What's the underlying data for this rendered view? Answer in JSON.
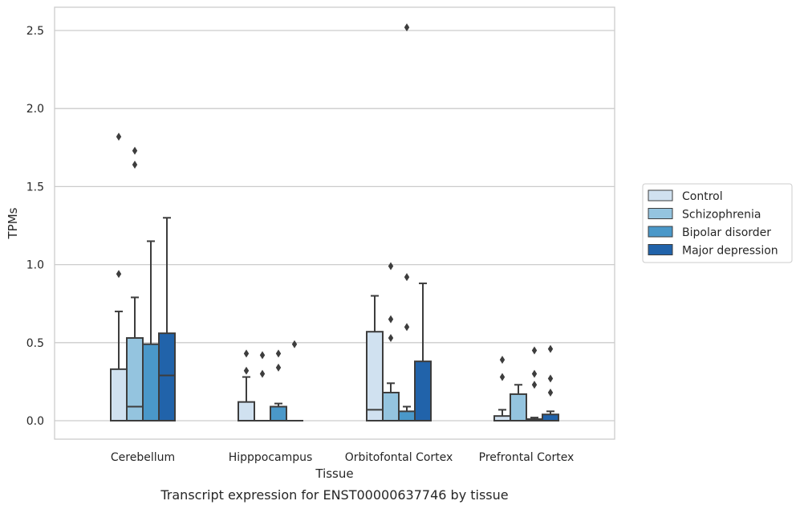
{
  "caption": "Transcript expression for ENST00000637746 by tissue",
  "chart_data": {
    "type": "boxplot",
    "xlabel": "Tissue",
    "ylabel": "TPMs",
    "ylim": [
      -0.12,
      2.65
    ],
    "yticks": [
      0.0,
      0.5,
      1.0,
      1.5,
      2.0,
      2.5
    ],
    "ytick_labels": [
      "0.0",
      "0.5",
      "1.0",
      "1.5",
      "2.0",
      "2.5"
    ],
    "grid": "horizontal",
    "legend_position": "right",
    "categories": [
      "Cerebellum",
      "Hipppocampus",
      "Orbitofontal Cortex",
      "Prefrontal Cortex"
    ],
    "series": [
      {
        "name": "Control",
        "color": "#d0e1f0",
        "boxes": [
          {
            "q1": 0.0,
            "median": 0.0,
            "q3": 0.33,
            "whisker_low": 0.0,
            "whisker_high": 0.7,
            "outliers": [
              0.94,
              1.82
            ]
          },
          {
            "q1": 0.0,
            "median": 0.0,
            "q3": 0.12,
            "whisker_low": 0.0,
            "whisker_high": 0.28,
            "outliers": [
              0.32,
              0.43
            ]
          },
          {
            "q1": 0.0,
            "median": 0.07,
            "q3": 0.57,
            "whisker_low": 0.0,
            "whisker_high": 0.8,
            "outliers": []
          },
          {
            "q1": 0.0,
            "median": 0.0,
            "q3": 0.03,
            "whisker_low": 0.0,
            "whisker_high": 0.07,
            "outliers": [
              0.28,
              0.39
            ]
          }
        ]
      },
      {
        "name": "Schizophrenia",
        "color": "#94c4df",
        "boxes": [
          {
            "q1": 0.0,
            "median": 0.09,
            "q3": 0.53,
            "whisker_low": 0.0,
            "whisker_high": 0.79,
            "outliers": [
              1.64,
              1.73
            ]
          },
          {
            "q1": 0.0,
            "median": 0.0,
            "q3": 0.0,
            "whisker_low": 0.0,
            "whisker_high": 0.0,
            "outliers": [
              0.3,
              0.42
            ]
          },
          {
            "q1": 0.0,
            "median": 0.0,
            "q3": 0.18,
            "whisker_low": 0.0,
            "whisker_high": 0.24,
            "outliers": [
              0.53,
              0.65,
              0.99
            ]
          },
          {
            "q1": 0.0,
            "median": 0.0,
            "q3": 0.17,
            "whisker_low": 0.0,
            "whisker_high": 0.23,
            "outliers": []
          }
        ]
      },
      {
        "name": "Bipolar disorder",
        "color": "#4a98c9",
        "boxes": [
          {
            "q1": 0.0,
            "median": 0.0,
            "q3": 0.49,
            "whisker_low": 0.0,
            "whisker_high": 1.15,
            "outliers": []
          },
          {
            "q1": 0.0,
            "median": 0.0,
            "q3": 0.09,
            "whisker_low": 0.0,
            "whisker_high": 0.11,
            "outliers": [
              0.34,
              0.43
            ]
          },
          {
            "q1": 0.0,
            "median": 0.0,
            "q3": 0.06,
            "whisker_low": 0.0,
            "whisker_high": 0.09,
            "outliers": [
              0.6,
              0.92,
              2.52
            ]
          },
          {
            "q1": 0.0,
            "median": 0.0,
            "q3": 0.01,
            "whisker_low": 0.0,
            "whisker_high": 0.02,
            "outliers": [
              0.23,
              0.3,
              0.45
            ]
          }
        ]
      },
      {
        "name": "Major depression",
        "color": "#2163aa",
        "boxes": [
          {
            "q1": 0.0,
            "median": 0.29,
            "q3": 0.56,
            "whisker_low": 0.0,
            "whisker_high": 1.3,
            "outliers": []
          },
          {
            "q1": 0.0,
            "median": 0.0,
            "q3": 0.0,
            "whisker_low": 0.0,
            "whisker_high": 0.0,
            "outliers": [
              0.49
            ]
          },
          {
            "q1": 0.0,
            "median": 0.0,
            "q3": 0.38,
            "whisker_low": 0.0,
            "whisker_high": 0.88,
            "outliers": []
          },
          {
            "q1": 0.0,
            "median": 0.0,
            "q3": 0.04,
            "whisker_low": 0.0,
            "whisker_high": 0.06,
            "outliers": [
              0.18,
              0.27,
              0.46
            ]
          }
        ]
      }
    ]
  }
}
